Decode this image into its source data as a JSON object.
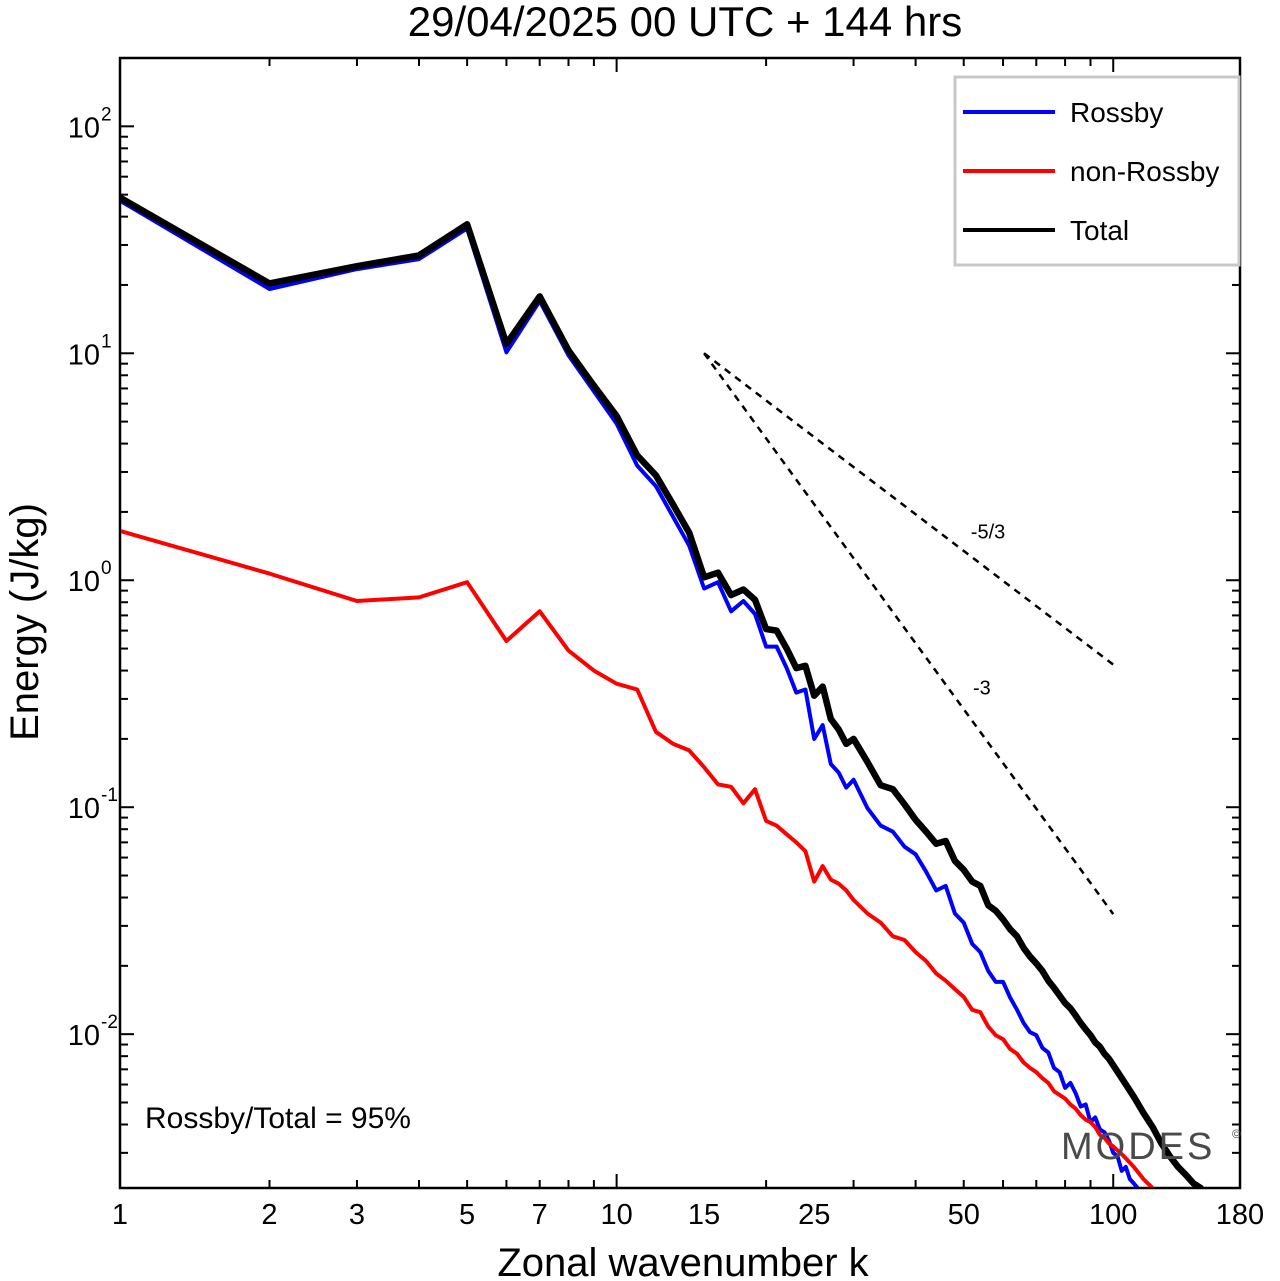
{
  "chart_data": {
    "type": "line",
    "title": "29/04/2025  00 UTC  + 144 hrs",
    "xlabel": "Zonal wavenumber k",
    "ylabel": "Energy (J/kg)",
    "xscale": "log",
    "yscale": "log",
    "xlim": [
      1,
      180
    ],
    "ylim": [
      0.0021,
      200
    ],
    "x_ticks": [
      1,
      2,
      3,
      5,
      7,
      10,
      15,
      25,
      50,
      100,
      180
    ],
    "x_tick_labels": [
      "1",
      "2",
      "3",
      "5",
      "7",
      "10",
      "15",
      "25",
      "50",
      "100",
      "180"
    ],
    "y_ticks": [
      0.01,
      0.1,
      1,
      10,
      100
    ],
    "y_tick_labels": [
      {
        "base": "10",
        "exp": "-2"
      },
      {
        "base": "10",
        "exp": "-1"
      },
      {
        "base": "10",
        "exp": "0"
      },
      {
        "base": "10",
        "exp": "1"
      },
      {
        "base": "10",
        "exp": "2"
      }
    ],
    "grid": false,
    "legend_position": "top-right",
    "series": [
      {
        "name": "Rossby",
        "color": "#0000ff",
        "x": [
          1,
          2,
          3,
          4,
          5,
          6,
          7,
          8,
          9,
          10,
          11,
          12,
          13,
          14,
          15,
          16,
          17,
          18,
          19,
          20,
          21,
          22,
          23,
          24,
          25,
          26,
          27,
          28,
          29,
          30,
          32,
          34,
          36,
          38,
          40,
          42,
          44,
          46,
          48,
          50,
          52,
          54,
          56,
          58,
          60,
          62,
          64,
          66,
          68,
          70,
          72,
          74,
          76,
          78,
          80,
          82,
          84,
          86,
          88,
          90,
          92,
          94,
          96,
          98,
          100,
          102,
          104,
          106,
          108,
          110,
          112
        ],
        "y": [
          47,
          19.2,
          23.5,
          26,
          35.5,
          10.1,
          17,
          9.8,
          6.8,
          4.9,
          3.2,
          2.6,
          1.9,
          1.42,
          0.92,
          0.98,
          0.73,
          0.81,
          0.71,
          0.51,
          0.51,
          0.41,
          0.32,
          0.33,
          0.2,
          0.23,
          0.155,
          0.142,
          0.122,
          0.132,
          0.099,
          0.083,
          0.078,
          0.067,
          0.062,
          0.052,
          0.043,
          0.045,
          0.034,
          0.031,
          0.025,
          0.023,
          0.019,
          0.017,
          0.017,
          0.0145,
          0.0128,
          0.0112,
          0.0102,
          0.0099,
          0.0087,
          0.0083,
          0.0071,
          0.0068,
          0.0058,
          0.0061,
          0.0055,
          0.0048,
          0.0049,
          0.0041,
          0.0043,
          0.0038,
          0.0037,
          0.0034,
          0.003,
          0.0029,
          0.0025,
          0.0026,
          0.0023,
          0.0022,
          0.0021
        ]
      },
      {
        "name": "non-Rossby",
        "color": "#ff0000",
        "x": [
          1,
          2,
          3,
          4,
          5,
          6,
          7,
          8,
          9,
          10,
          11,
          12,
          13,
          14,
          15,
          16,
          17,
          18,
          19,
          20,
          21,
          22,
          23,
          24,
          25,
          26,
          27,
          28,
          29,
          30,
          32,
          34,
          36,
          38,
          40,
          42,
          44,
          46,
          48,
          50,
          52,
          54,
          56,
          58,
          60,
          62,
          64,
          66,
          68,
          70,
          72,
          74,
          76,
          78,
          80,
          82,
          84,
          86,
          88,
          90,
          92,
          94,
          96,
          98,
          100,
          105,
          110,
          115,
          120
        ],
        "y": [
          1.65,
          1.07,
          0.81,
          0.84,
          0.98,
          0.54,
          0.73,
          0.49,
          0.4,
          0.35,
          0.33,
          0.215,
          0.19,
          0.178,
          0.15,
          0.126,
          0.123,
          0.104,
          0.12,
          0.087,
          0.083,
          0.076,
          0.07,
          0.064,
          0.047,
          0.055,
          0.048,
          0.046,
          0.043,
          0.039,
          0.034,
          0.031,
          0.027,
          0.026,
          0.023,
          0.021,
          0.0185,
          0.0172,
          0.0158,
          0.0146,
          0.0128,
          0.0125,
          0.0108,
          0.0099,
          0.0095,
          0.0086,
          0.0082,
          0.0075,
          0.0071,
          0.0068,
          0.0064,
          0.0061,
          0.0056,
          0.0054,
          0.0052,
          0.0049,
          0.0047,
          0.0044,
          0.0042,
          0.0041,
          0.0039,
          0.0036,
          0.0035,
          0.0033,
          0.0032,
          0.0029,
          0.0026,
          0.0023,
          0.0021
        ]
      },
      {
        "name": "Total",
        "color": "#000000",
        "x": [
          1,
          2,
          3,
          4,
          5,
          6,
          7,
          8,
          9,
          10,
          11,
          12,
          13,
          14,
          15,
          16,
          17,
          18,
          19,
          20,
          21,
          22,
          23,
          24,
          25,
          26,
          27,
          28,
          29,
          30,
          32,
          34,
          36,
          38,
          40,
          42,
          44,
          46,
          48,
          50,
          52,
          54,
          56,
          58,
          60,
          62,
          64,
          66,
          68,
          70,
          72,
          74,
          76,
          78,
          80,
          82,
          84,
          86,
          88,
          90,
          92,
          94,
          96,
          98,
          100,
          105,
          110,
          115,
          120,
          125,
          130,
          135,
          140,
          145,
          150
        ],
        "y": [
          48.5,
          20.3,
          24.2,
          27,
          37,
          11,
          17.8,
          10.3,
          7.2,
          5.3,
          3.55,
          2.9,
          2.15,
          1.62,
          1.03,
          1.08,
          0.86,
          0.91,
          0.82,
          0.61,
          0.6,
          0.5,
          0.41,
          0.42,
          0.31,
          0.34,
          0.245,
          0.22,
          0.19,
          0.2,
          0.158,
          0.125,
          0.12,
          0.103,
          0.088,
          0.078,
          0.069,
          0.071,
          0.058,
          0.053,
          0.047,
          0.045,
          0.037,
          0.035,
          0.032,
          0.029,
          0.027,
          0.024,
          0.022,
          0.0205,
          0.019,
          0.0172,
          0.016,
          0.0148,
          0.0137,
          0.013,
          0.0121,
          0.0112,
          0.0105,
          0.0099,
          0.0092,
          0.0088,
          0.0082,
          0.0078,
          0.0073,
          0.0062,
          0.0053,
          0.0045,
          0.0039,
          0.0033,
          0.0029,
          0.0026,
          0.0024,
          0.0022,
          0.0021
        ]
      }
    ],
    "reference_lines": [
      {
        "label": "-5/3",
        "x": [
          15,
          100
        ],
        "y": [
          10,
          0.4248
        ]
      },
      {
        "label": "-3",
        "x": [
          15,
          100
        ],
        "y": [
          10,
          0.0338
        ]
      }
    ],
    "annotations": {
      "ratio_text": "Rossby/Total = 95%",
      "watermark": "MODES",
      "copyright": "©"
    }
  }
}
